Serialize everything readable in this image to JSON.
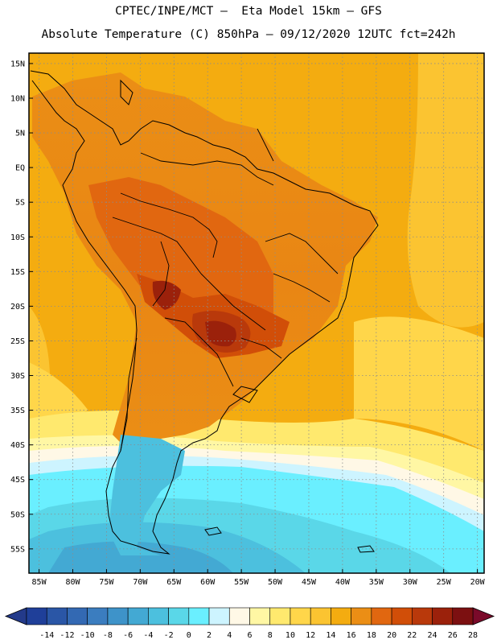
{
  "header": {
    "line1": "CPTEC/INPE/MCT –  Eta Model 15km – GFS",
    "line2": "Absolute Temperature (C) 850hPa – 09/12/2020 12UTC fct=242h"
  },
  "map": {
    "lat_labels": [
      "15N",
      "10N",
      "5N",
      "EQ",
      "5S",
      "10S",
      "15S",
      "20S",
      "25S",
      "30S",
      "35S",
      "40S",
      "45S",
      "50S",
      "55S"
    ],
    "lon_labels": [
      "85W",
      "80W",
      "75W",
      "70W",
      "65W",
      "60W",
      "55W",
      "50W",
      "45W",
      "40W",
      "35W",
      "30W",
      "25W",
      "20W"
    ],
    "lat_values": [
      15,
      10,
      5,
      0,
      -5,
      -10,
      -15,
      -20,
      -25,
      -30,
      -35,
      -40,
      -45,
      -50,
      -55
    ],
    "lon_values": [
      -85,
      -80,
      -75,
      -70,
      -65,
      -60,
      -55,
      -50,
      -45,
      -40,
      -35,
      -30,
      -25,
      -20
    ]
  },
  "colorbar": {
    "labels": [
      "-14",
      "-12",
      "-10",
      "-8",
      "-6",
      "-4",
      "-2",
      "0",
      "2",
      "4",
      "6",
      "8",
      "10",
      "12",
      "14",
      "16",
      "18",
      "20",
      "22",
      "24",
      "26",
      "28"
    ],
    "colors": [
      "#1f3f99",
      "#2a56a6",
      "#3369b3",
      "#3b7dbf",
      "#3e93c9",
      "#43a9d3",
      "#4cc0de",
      "#5ad7e8",
      "#6aefff",
      "#cdf4ff",
      "#fff8e6",
      "#fff7a4",
      "#ffe96e",
      "#ffd64a",
      "#fbc431",
      "#f4ac10",
      "#eb8e15",
      "#e16710",
      "#d14e08",
      "#b9390b",
      "#9b210b",
      "#7c1011"
    ],
    "low_color": "#233a8a",
    "high_color": "#7a0a2a"
  }
}
